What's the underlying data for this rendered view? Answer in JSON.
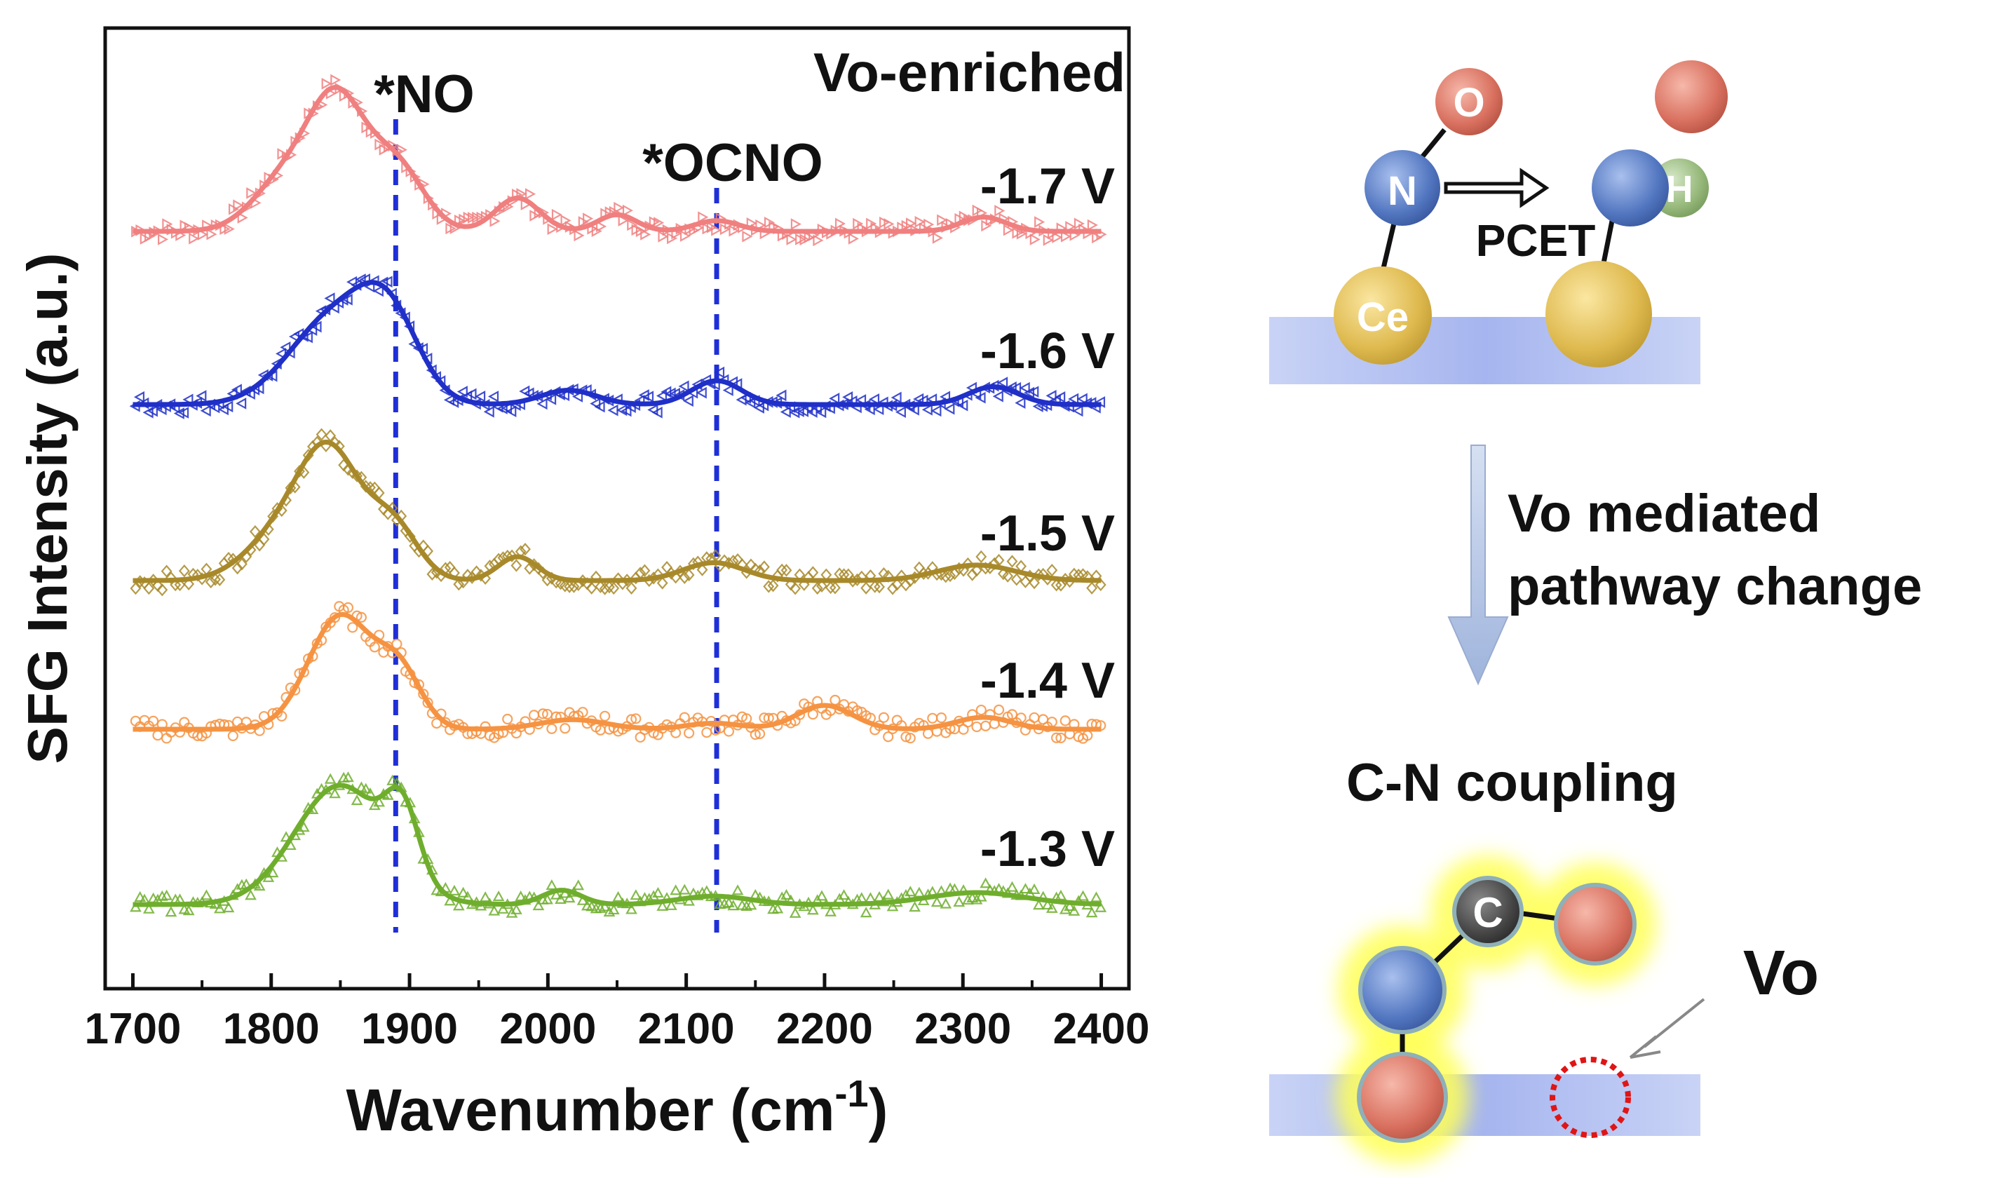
{
  "chart_data": {
    "type": "line",
    "title": "Vo-enriched",
    "xlabel": "Wavenumber (cm",
    "xlabel_sup": "-1",
    "xlabel_close": ")",
    "ylabel": "SFG Intensity (a.u.)",
    "xlim": [
      1680,
      2420
    ],
    "x_ticks": [
      "1700",
      "1800",
      "1900",
      "2000",
      "2100",
      "2200",
      "2300",
      "2400"
    ],
    "x_tick_values": [
      1700,
      1800,
      1900,
      2000,
      2100,
      2200,
      2300,
      2400
    ],
    "reference_lines": [
      {
        "label": "*NO",
        "x": 1890
      },
      {
        "label": "*OCNO",
        "x": 2122
      }
    ],
    "peak_model": "Relative intensity = sum of Gaussian peaks on a zero baseline; peaks listed as [center cm-1, relative height, width cm-1]",
    "series": [
      {
        "name": "-1.7 V",
        "color": "#f07f7f",
        "marker": "triangle-right",
        "peaks": [
          [
            1848,
            1.0,
            20
          ],
          [
            1812,
            0.45,
            24
          ],
          [
            1890,
            0.55,
            20
          ],
          [
            1978,
            0.28,
            16
          ],
          [
            2050,
            0.14,
            14
          ],
          [
            2122,
            0.09,
            16
          ],
          [
            2315,
            0.12,
            16
          ]
        ]
      },
      {
        "name": "-1.6 V",
        "color": "#1f2fc8",
        "marker": "triangle-left",
        "peaks": [
          [
            1845,
            0.72,
            32
          ],
          [
            1885,
            0.62,
            22
          ],
          [
            2015,
            0.12,
            20
          ],
          [
            2122,
            0.2,
            18
          ],
          [
            2322,
            0.15,
            18
          ]
        ]
      },
      {
        "name": "-1.5 V",
        "color": "#a8892a",
        "marker": "diamond",
        "peaks": [
          [
            1843,
            0.98,
            22
          ],
          [
            1808,
            0.38,
            26
          ],
          [
            1888,
            0.45,
            18
          ],
          [
            1978,
            0.2,
            14
          ],
          [
            2120,
            0.15,
            22
          ],
          [
            2310,
            0.13,
            28
          ]
        ]
      },
      {
        "name": "-1.4 V",
        "color": "#f59342",
        "marker": "circle",
        "peaks": [
          [
            1850,
            0.95,
            23
          ],
          [
            1893,
            0.45,
            16
          ],
          [
            2018,
            0.08,
            24
          ],
          [
            2120,
            0.05,
            20
          ],
          [
            2200,
            0.2,
            20
          ],
          [
            2315,
            0.1,
            20
          ]
        ]
      },
      {
        "name": "-1.3 V",
        "color": "#6fae2d",
        "marker": "triangle-up",
        "peaks": [
          [
            1850,
            1.0,
            33
          ],
          [
            1895,
            0.55,
            12
          ],
          [
            2010,
            0.12,
            14
          ],
          [
            2120,
            0.07,
            26
          ],
          [
            2310,
            0.1,
            35
          ]
        ]
      }
    ]
  },
  "diagram": {
    "atoms_top": {
      "o": "O",
      "n": "N",
      "ce": "Ce",
      "h": "H"
    },
    "pcet_label": "PCET",
    "arrow_label_line1": "Vo mediated",
    "arrow_label_line2": "pathway change",
    "coupling_title": "C-N coupling",
    "atom_c": "C",
    "vacancy_label": "Vo"
  },
  "colors": {
    "oxygen": "#e08070",
    "nitrogen": "#5b7ec4",
    "cerium": "#e3c25c",
    "hydrogen": "#9fbf85",
    "carbon": "#4a4a4a",
    "surface": "#aab8f0",
    "glow": "#ffff66",
    "vacancy": "#e01515",
    "dashed_line": "#1f2fd8",
    "down_arrow": "#b4c4e2"
  }
}
